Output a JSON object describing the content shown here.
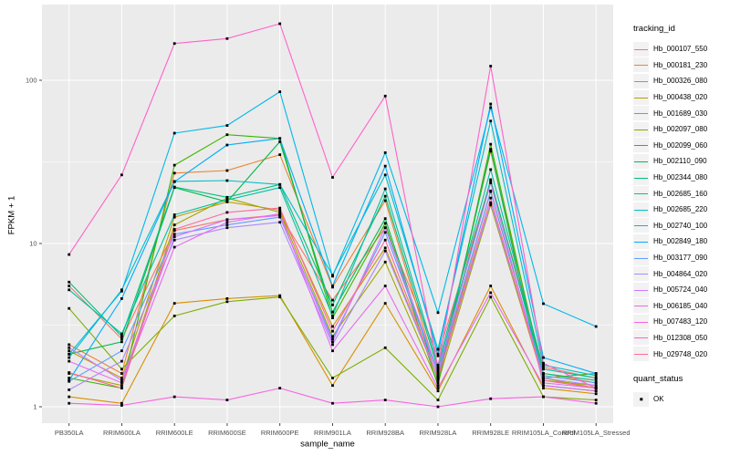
{
  "style": {
    "background": "#FFFFFF",
    "panel_background": "#EBEBEB",
    "grid_color": "#FFFFFF",
    "axis_text_color": "#4D4D4D",
    "axis_tick_color": "#333333",
    "point_color": "#000000",
    "legend_key_background": "#F2F2F2"
  },
  "y_axis": {
    "title": "FPKM + 1"
  },
  "x_axis": {
    "title": "sample_name"
  },
  "legend": {
    "title": "tracking_id"
  },
  "legend2": {
    "title": "quant_status",
    "items": [
      {
        "label": "OK"
      }
    ]
  },
  "chart_data": {
    "type": "line",
    "title": "",
    "xlabel": "sample_name",
    "ylabel": "FPKM + 1",
    "y_scale": "log10",
    "grid": true,
    "legend_position": "right",
    "y_major": [
      1,
      10,
      100
    ],
    "y_minor": [
      3.162,
      31.62
    ],
    "ylim": [
      0.79,
      280
    ],
    "point_shape": "square",
    "point_label": "OK",
    "categories": [
      "PB350LA",
      "RRIM600LA",
      "RRIM600LE",
      "RRIM600SE",
      "RRIM600PE",
      "RRIM901LA",
      "RRIM928BA",
      "RRIM928LA",
      "RRIM928LE",
      "RRIM105LA_Control",
      "RRIM105LA_Stressed"
    ],
    "series": [
      {
        "name": "Hb_000107_550",
        "color": "#F8766D",
        "values": [
          5.5,
          2.6,
          12.0,
          14.0,
          15.0,
          4.5,
          12.5,
          2.05,
          24.0,
          1.75,
          1.5
        ]
      },
      {
        "name": "Hb_000181_230",
        "color": "#EA8331",
        "values": [
          2.4,
          1.6,
          27.0,
          28.0,
          35.0,
          5.4,
          18.3,
          1.55,
          36.7,
          1.6,
          1.4
        ]
      },
      {
        "name": "Hb_000326_080",
        "color": "#D89000",
        "values": [
          1.15,
          1.05,
          4.3,
          4.6,
          4.8,
          1.35,
          4.3,
          1.25,
          5.5,
          1.3,
          1.2
        ]
      },
      {
        "name": "Hb_000438_020",
        "color": "#C09B00",
        "values": [
          2.2,
          1.5,
          14.5,
          18.0,
          16.0,
          3.1,
          9.4,
          1.5,
          21.0,
          1.5,
          1.3
        ]
      },
      {
        "name": "Hb_001689_030",
        "color": "#A3A500",
        "values": [
          1.6,
          1.35,
          13.0,
          19.0,
          15.5,
          2.7,
          7.7,
          1.4,
          17.2,
          1.45,
          1.35
        ]
      },
      {
        "name": "Hb_002097_080",
        "color": "#7CAE00",
        "values": [
          4.0,
          1.7,
          3.6,
          4.4,
          4.7,
          1.5,
          2.3,
          1.1,
          4.7,
          1.15,
          1.1
        ]
      },
      {
        "name": "Hb_002099_060",
        "color": "#39B600",
        "values": [
          1.5,
          1.3,
          30.2,
          46.4,
          44.0,
          3.5,
          13.3,
          1.35,
          40.6,
          1.5,
          1.6
        ]
      },
      {
        "name": "Hb_002110_090",
        "color": "#00BB4E",
        "values": [
          2.1,
          2.5,
          22.0,
          18.0,
          42.0,
          3.8,
          14.2,
          1.45,
          37.8,
          1.35,
          1.25
        ]
      },
      {
        "name": "Hb_002344_080",
        "color": "#00BF7D",
        "values": [
          5.8,
          2.7,
          22.2,
          19.2,
          23.0,
          4.2,
          19.5,
          1.7,
          24.6,
          1.6,
          1.45
        ]
      },
      {
        "name": "Hb_002685_160",
        "color": "#00C1A3",
        "values": [
          5.2,
          2.8,
          15.0,
          18.5,
          22.0,
          3.6,
          21.6,
          1.8,
          28.4,
          1.7,
          1.5
        ]
      },
      {
        "name": "Hb_002685_220",
        "color": "#00BFC4",
        "values": [
          2.0,
          5.2,
          24.0,
          24.3,
          23.0,
          6.4,
          26.3,
          2.25,
          56.3,
          1.8,
          1.55
        ]
      },
      {
        "name": "Hb_002740_100",
        "color": "#00B8E7",
        "values": [
          2.1,
          5.1,
          47.4,
          52.8,
          85.0,
          6.3,
          36.0,
          3.77,
          68.0,
          4.28,
          3.1
        ]
      },
      {
        "name": "Hb_002849_180",
        "color": "#00ACFC",
        "values": [
          1.45,
          4.6,
          23.9,
          40.1,
          44.0,
          5.5,
          29.8,
          2.1,
          71.6,
          2.0,
          1.6
        ]
      },
      {
        "name": "Hb_003177_090",
        "color": "#619CFF",
        "values": [
          1.43,
          2.2,
          11.4,
          13.0,
          14.5,
          2.6,
          11.7,
          1.6,
          20.8,
          1.55,
          1.4
        ]
      },
      {
        "name": "Hb_004864_020",
        "color": "#AC88FF",
        "values": [
          1.27,
          1.9,
          10.5,
          12.5,
          13.5,
          2.4,
          9.0,
          1.5,
          17.8,
          1.5,
          1.35
        ]
      },
      {
        "name": "Hb_005724_040",
        "color": "#CE78FF",
        "values": [
          2.3,
          1.45,
          11.0,
          14.0,
          14.8,
          2.5,
          12.5,
          1.65,
          23.5,
          1.4,
          1.3
        ]
      },
      {
        "name": "Hb_006185_040",
        "color": "#E76BF3",
        "values": [
          1.9,
          1.4,
          9.5,
          13.5,
          15.2,
          2.2,
          5.5,
          1.3,
          5.0,
          1.35,
          1.25
        ]
      },
      {
        "name": "Hb_007483_120",
        "color": "#F763E0",
        "values": [
          1.05,
          1.02,
          1.15,
          1.1,
          1.3,
          1.05,
          1.1,
          1.0,
          1.12,
          1.15,
          1.05
        ]
      },
      {
        "name": "Hb_012308_050",
        "color": "#FF61C9",
        "values": [
          8.56,
          26.3,
          168.0,
          180.0,
          222.0,
          25.4,
          80.0,
          1.74,
          122.0,
          1.85,
          1.3
        ]
      },
      {
        "name": "Hb_029748_020",
        "color": "#FF689F",
        "values": [
          1.62,
          1.3,
          12.2,
          15.5,
          16.5,
          2.9,
          10.5,
          1.5,
          19.0,
          1.45,
          1.3
        ]
      }
    ]
  }
}
